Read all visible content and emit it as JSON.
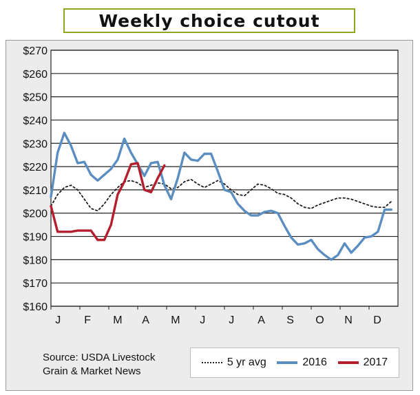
{
  "title": "Weekly choice cutout",
  "source": {
    "line1": "Source: USDA Livestock",
    "line2": "Grain & Market News"
  },
  "colors": {
    "avg": "#1a1a1a",
    "y2016": "#5b8ec0",
    "y2017": "#b41f2e",
    "title_border": "#8fa51c",
    "panel": "#ececec"
  },
  "chart_data": {
    "type": "line",
    "title": "Weekly choice cutout",
    "xlabel": "",
    "ylabel": "",
    "ylim": [
      160,
      270
    ],
    "yticks": [
      160,
      170,
      180,
      190,
      200,
      210,
      220,
      230,
      240,
      250,
      260,
      270
    ],
    "ytick_labels": [
      "$160",
      "$170",
      "$180",
      "$190",
      "$200",
      "$210",
      "$220",
      "$230",
      "$240",
      "$250",
      "$260",
      "$270"
    ],
    "xlim": [
      0,
      52
    ],
    "months": [
      "J",
      "F",
      "M",
      "A",
      "M",
      "J",
      "J",
      "A",
      "S",
      "O",
      "N",
      "D"
    ],
    "grid": "horizontal",
    "legend": "bottom-right",
    "series": [
      {
        "name": "5 yr avg",
        "style": "dotted",
        "x": [
          0,
          1,
          2,
          3,
          4,
          5,
          6,
          7,
          8,
          9,
          10,
          11,
          12,
          13,
          14,
          15,
          16,
          17,
          18,
          19,
          20,
          21,
          22,
          23,
          24,
          25,
          26,
          27,
          28,
          29,
          30,
          31,
          32,
          33,
          34,
          35,
          36,
          37,
          38,
          39,
          40,
          41,
          42,
          43,
          44,
          45,
          46,
          47,
          48,
          49,
          50,
          51
        ],
        "values": [
          203,
          208,
          211,
          212,
          210,
          206,
          202,
          201,
          204,
          208,
          211,
          213.5,
          214,
          213,
          211,
          212,
          213,
          212.5,
          210.5,
          211,
          213.5,
          214.5,
          212.5,
          211,
          212.5,
          214,
          212.5,
          210,
          208,
          207.5,
          210,
          212.5,
          212,
          210.5,
          208.5,
          208,
          206.5,
          204,
          202.5,
          202,
          203.5,
          204.5,
          205.5,
          206.5,
          206.5,
          206,
          205,
          204,
          203,
          202.5,
          202.5,
          205
        ]
      },
      {
        "name": "2016",
        "style": "solid",
        "x": [
          0,
          1,
          2,
          3,
          4,
          5,
          6,
          7,
          8,
          9,
          10,
          11,
          12,
          13,
          14,
          15,
          16,
          17,
          18,
          19,
          20,
          21,
          22,
          23,
          24,
          25,
          26,
          27,
          28,
          29,
          30,
          31,
          32,
          33,
          34,
          35,
          36,
          37,
          38,
          39,
          40,
          41,
          42,
          43,
          44,
          45,
          46,
          47,
          48,
          49,
          50,
          51
        ],
        "values": [
          207,
          226,
          234.5,
          229,
          221.5,
          222,
          216.5,
          214,
          216.5,
          219,
          223,
          232,
          226,
          221,
          216,
          221.5,
          222,
          212,
          206,
          215,
          226,
          223,
          222.5,
          225.5,
          225.5,
          218,
          210,
          209,
          204,
          201,
          199,
          199,
          200.5,
          201,
          200,
          194.5,
          189.5,
          186.5,
          187,
          188.5,
          184.5,
          182,
          180,
          182,
          187,
          183,
          186,
          189.5,
          190,
          192,
          201.5,
          201.5
        ]
      },
      {
        "name": "2017",
        "style": "solid",
        "x": [
          0,
          1,
          2,
          3,
          4,
          5,
          6,
          7,
          8,
          9,
          10,
          11,
          12,
          13,
          14,
          15,
          16,
          17
        ],
        "values": [
          203,
          192,
          192,
          192,
          192.5,
          192.5,
          192.5,
          188.5,
          188.5,
          195,
          208,
          213.5,
          221,
          221.5,
          210,
          209,
          215,
          220.5
        ]
      }
    ]
  }
}
